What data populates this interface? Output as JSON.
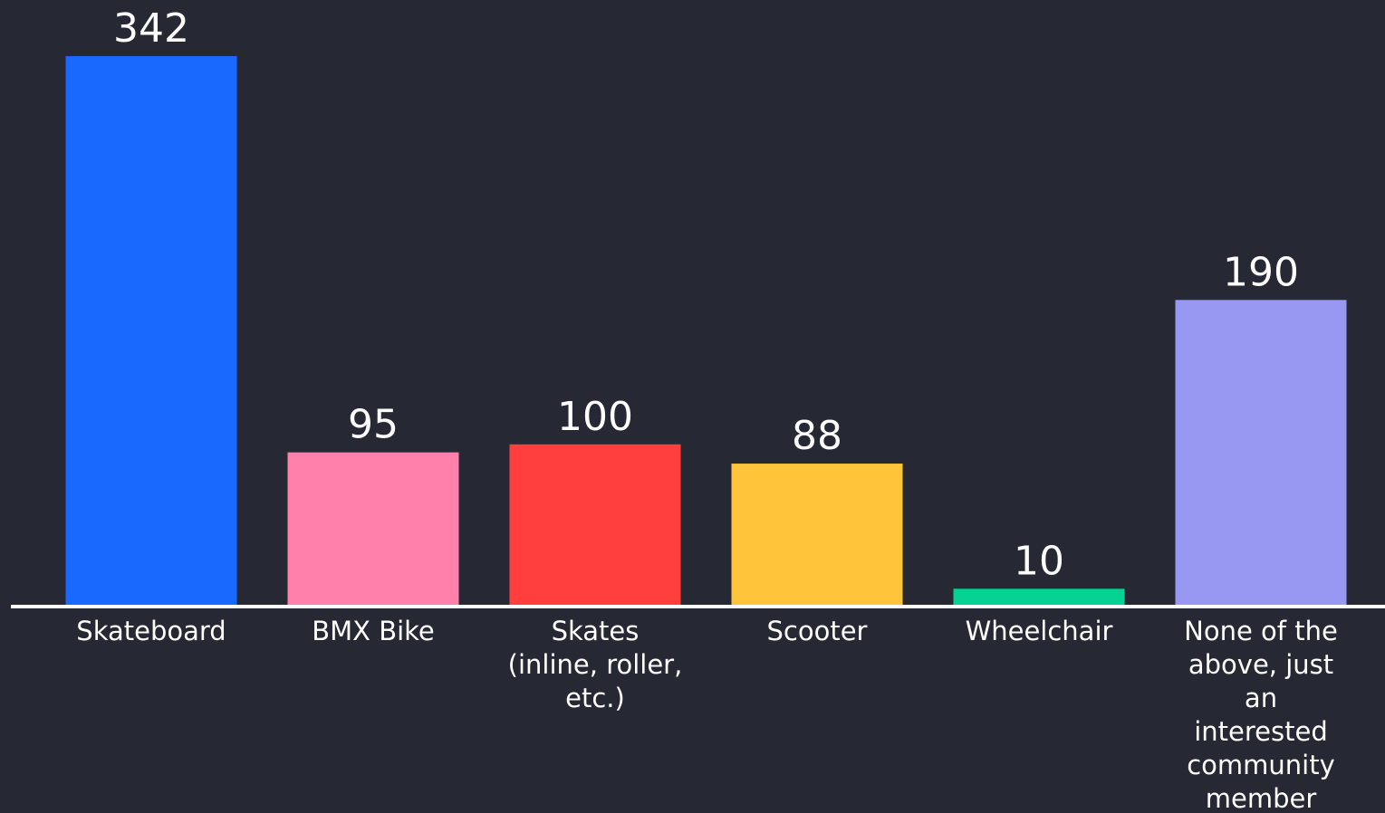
{
  "chart_data": {
    "type": "bar",
    "categories": [
      "Skateboard",
      "BMX Bike",
      "Skates (inline, roller, etc.)",
      "Scooter",
      "Wheelchair",
      "None of the above, just an interested community member"
    ],
    "category_label_lines": [
      [
        "Skateboard"
      ],
      [
        "BMX Bike"
      ],
      [
        "Skates",
        "(inline, roller,",
        "etc.)"
      ],
      [
        "Scooter"
      ],
      [
        "Wheelchair"
      ],
      [
        "None of the",
        "above, just",
        "an",
        "interested",
        "community",
        "member"
      ]
    ],
    "values": [
      342,
      95,
      100,
      88,
      10,
      190
    ],
    "colors": [
      "#1a69ff",
      "#ff80aa",
      "#ff3e3e",
      "#ffc43a",
      "#04d292",
      "#9898f2"
    ],
    "value_labels": [
      "342",
      "95",
      "100",
      "88",
      "10",
      "190"
    ],
    "title": "",
    "xlabel": "",
    "ylabel": "",
    "ylim": [
      0,
      342
    ],
    "grid": false,
    "legend": "none",
    "axis_color": "#ffffff",
    "background": "#262933"
  }
}
